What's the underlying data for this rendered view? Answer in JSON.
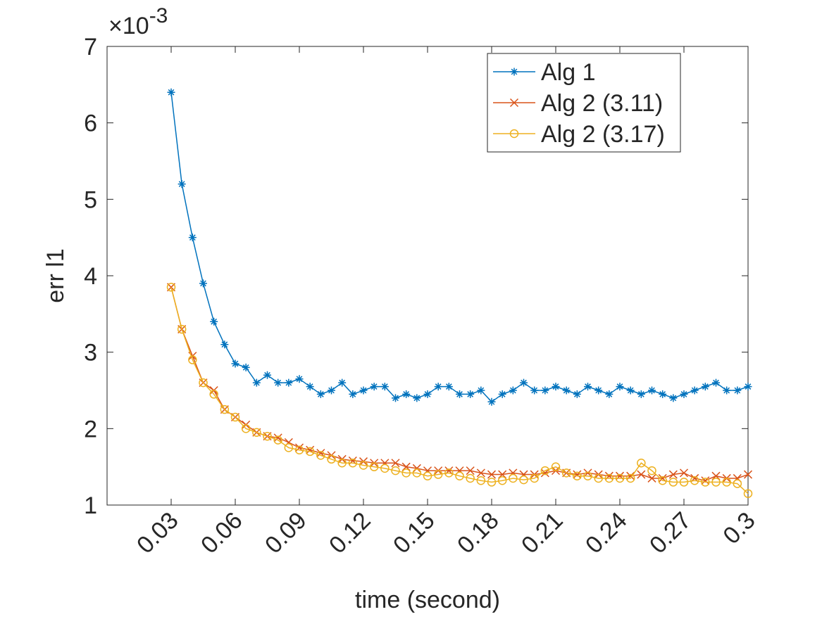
{
  "chart_data": {
    "type": "line",
    "xlabel": "time (second)",
    "ylabel": "err l1",
    "y_multiplier": {
      "base": "×10",
      "exponent": "-3"
    },
    "x": [
      0.03,
      0.035,
      0.04,
      0.045,
      0.05,
      0.055,
      0.06,
      0.065,
      0.07,
      0.075,
      0.08,
      0.085,
      0.09,
      0.095,
      0.1,
      0.105,
      0.11,
      0.115,
      0.12,
      0.125,
      0.13,
      0.135,
      0.14,
      0.145,
      0.15,
      0.155,
      0.16,
      0.165,
      0.17,
      0.175,
      0.18,
      0.185,
      0.19,
      0.195,
      0.2,
      0.205,
      0.21,
      0.215,
      0.22,
      0.225,
      0.23,
      0.235,
      0.24,
      0.245,
      0.25,
      0.255,
      0.26,
      0.265,
      0.27,
      0.275,
      0.28,
      0.285,
      0.29,
      0.295,
      0.3
    ],
    "series": [
      {
        "name": "Alg 1",
        "color": "#0072bd",
        "marker": "asterisk",
        "values": [
          6.4,
          5.2,
          4.5,
          3.9,
          3.4,
          3.1,
          2.85,
          2.8,
          2.6,
          2.7,
          2.6,
          2.6,
          2.65,
          2.55,
          2.45,
          2.5,
          2.6,
          2.45,
          2.5,
          2.55,
          2.55,
          2.4,
          2.45,
          2.4,
          2.45,
          2.55,
          2.55,
          2.45,
          2.45,
          2.5,
          2.35,
          2.45,
          2.5,
          2.6,
          2.5,
          2.5,
          2.55,
          2.5,
          2.45,
          2.55,
          2.5,
          2.45,
          2.55,
          2.5,
          2.45,
          2.5,
          2.45,
          2.4,
          2.45,
          2.5,
          2.55,
          2.6,
          2.5,
          2.5,
          2.55
        ]
      },
      {
        "name": "Alg 2 (3.11)",
        "color": "#d95319",
        "marker": "x",
        "values": [
          3.85,
          3.3,
          2.95,
          2.6,
          2.5,
          2.25,
          2.15,
          2.05,
          1.95,
          1.9,
          1.88,
          1.82,
          1.75,
          1.72,
          1.68,
          1.65,
          1.6,
          1.58,
          1.57,
          1.55,
          1.55,
          1.55,
          1.5,
          1.48,
          1.45,
          1.45,
          1.45,
          1.45,
          1.45,
          1.42,
          1.4,
          1.4,
          1.42,
          1.4,
          1.4,
          1.42,
          1.45,
          1.42,
          1.4,
          1.42,
          1.4,
          1.38,
          1.38,
          1.38,
          1.4,
          1.35,
          1.35,
          1.4,
          1.42,
          1.35,
          1.32,
          1.38,
          1.35,
          1.35,
          1.4
        ]
      },
      {
        "name": "Alg 2 (3.17)",
        "color": "#edb120",
        "marker": "circle",
        "values": [
          3.85,
          3.3,
          2.9,
          2.6,
          2.45,
          2.25,
          2.15,
          2.0,
          1.95,
          1.9,
          1.85,
          1.75,
          1.72,
          1.7,
          1.65,
          1.6,
          1.55,
          1.55,
          1.52,
          1.5,
          1.48,
          1.45,
          1.42,
          1.42,
          1.38,
          1.4,
          1.42,
          1.38,
          1.35,
          1.32,
          1.3,
          1.32,
          1.35,
          1.33,
          1.35,
          1.45,
          1.5,
          1.42,
          1.38,
          1.38,
          1.35,
          1.35,
          1.35,
          1.35,
          1.55,
          1.45,
          1.32,
          1.3,
          1.3,
          1.32,
          1.3,
          1.3,
          1.3,
          1.28,
          1.15
        ]
      }
    ],
    "xlim": [
      0,
      0.3
    ],
    "ylim": [
      1,
      7
    ],
    "xticks": [
      0.03,
      0.06,
      0.09,
      0.12,
      0.15,
      0.18,
      0.21,
      0.24,
      0.27,
      0.3
    ],
    "yticks": [
      1,
      2,
      3,
      4,
      5,
      6,
      7
    ],
    "grid": false,
    "legend": "northeast"
  }
}
